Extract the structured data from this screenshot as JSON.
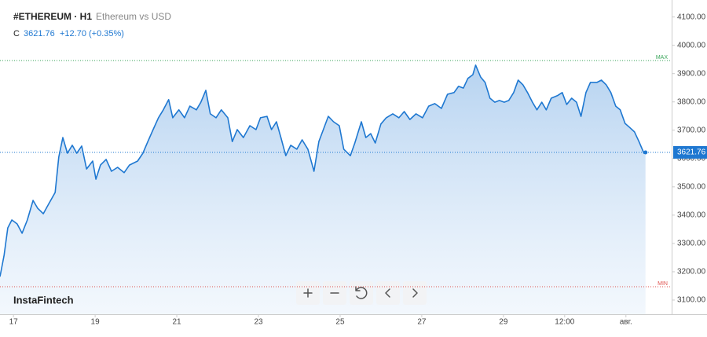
{
  "chart_data": {
    "type": "area",
    "symbol": "#ETHEREUM · H1",
    "description": "Ethereum vs USD",
    "close_label": "C",
    "last": 3621.76,
    "change": "+12.70 (+0.35%)",
    "brand": "InstaFintech",
    "max_line": {
      "label": "MAX",
      "value": 3946
    },
    "min_line": {
      "label": "MIN",
      "value": 3147
    },
    "color": "#1f78d1",
    "x": [
      16.67,
      16.77,
      16.86,
      16.96,
      17.09,
      17.21,
      17.34,
      17.48,
      17.59,
      17.73,
      17.86,
      18.02,
      18.11,
      18.21,
      18.32,
      18.44,
      18.55,
      18.67,
      18.79,
      18.94,
      19.02,
      19.13,
      19.27,
      19.4,
      19.55,
      19.71,
      19.84,
      20.04,
      20.17,
      20.29,
      20.42,
      20.55,
      20.67,
      20.8,
      20.9,
      21.05,
      21.19,
      21.32,
      21.48,
      21.59,
      21.71,
      21.82,
      21.96,
      22.09,
      22.25,
      22.36,
      22.48,
      22.63,
      22.79,
      22.94,
      23.05,
      23.21,
      23.32,
      23.44,
      23.55,
      23.67,
      23.79,
      23.94,
      24.07,
      24.21,
      24.36,
      24.48,
      24.59,
      24.71,
      24.84,
      24.98,
      25.09,
      25.25,
      25.36,
      25.52,
      25.63,
      25.75,
      25.86,
      26.0,
      26.13,
      26.29,
      26.44,
      26.57,
      26.71,
      26.86,
      27.02,
      27.17,
      27.32,
      27.48,
      27.63,
      27.79,
      27.9,
      28.02,
      28.13,
      28.25,
      28.32,
      28.44,
      28.55,
      28.67,
      28.79,
      28.9,
      29.02,
      29.13,
      29.25,
      29.36,
      29.48,
      29.59,
      29.71,
      29.82,
      29.94,
      30.05,
      30.17,
      30.32,
      30.44,
      30.55,
      30.67,
      30.79,
      30.9,
      31.02,
      31.13,
      31.29,
      31.4,
      31.52,
      31.63,
      31.75,
      31.86,
      31.98,
      32.09,
      32.21,
      32.32,
      32.44,
      32.48
    ],
    "values": [
      3183,
      3258,
      3355,
      3383,
      3369,
      3336,
      3383,
      3452,
      3425,
      3405,
      3439,
      3480,
      3605,
      3674,
      3619,
      3647,
      3619,
      3644,
      3563,
      3591,
      3527,
      3577,
      3597,
      3555,
      3569,
      3550,
      3577,
      3591,
      3619,
      3660,
      3702,
      3744,
      3772,
      3808,
      3744,
      3772,
      3744,
      3785,
      3772,
      3799,
      3841,
      3758,
      3744,
      3772,
      3744,
      3660,
      3702,
      3674,
      3716,
      3702,
      3744,
      3749,
      3702,
      3730,
      3674,
      3610,
      3647,
      3633,
      3666,
      3633,
      3555,
      3660,
      3702,
      3749,
      3730,
      3716,
      3633,
      3610,
      3655,
      3730,
      3674,
      3688,
      3655,
      3722,
      3744,
      3758,
      3744,
      3766,
      3738,
      3758,
      3744,
      3785,
      3794,
      3777,
      3827,
      3833,
      3855,
      3849,
      3883,
      3896,
      3930,
      3888,
      3869,
      3813,
      3799,
      3805,
      3799,
      3805,
      3833,
      3877,
      3860,
      3833,
      3799,
      3772,
      3799,
      3772,
      3813,
      3822,
      3833,
      3791,
      3813,
      3799,
      3749,
      3833,
      3869,
      3869,
      3877,
      3860,
      3833,
      3785,
      3772,
      3724,
      3710,
      3694,
      3660,
      3619,
      3621.76
    ],
    "xlim": [
      16.67,
      33.12
    ],
    "ylim": [
      3050,
      4160
    ],
    "xticks": [
      17,
      19,
      21,
      23,
      25,
      27,
      29,
      {
        "value": 30.5,
        "label": "12:00"
      },
      {
        "value": 32,
        "label": "авг."
      }
    ],
    "yticks": [
      {
        "value": 3100,
        "label": "3100.00"
      },
      {
        "value": 3200,
        "label": "3200.00"
      },
      {
        "value": 3300,
        "label": "3300.00"
      },
      {
        "value": 3400,
        "label": "3400.00"
      },
      {
        "value": 3500,
        "label": "3500.00"
      },
      {
        "value": 3600,
        "label": "3600.00"
      },
      {
        "value": 3700,
        "label": "3700.00"
      },
      {
        "value": 3800,
        "label": "3800.00"
      },
      {
        "value": 3900,
        "label": "3900.00"
      },
      {
        "value": 4000,
        "label": "4000.00"
      },
      {
        "value": 4100,
        "label": "4100.00"
      }
    ]
  }
}
